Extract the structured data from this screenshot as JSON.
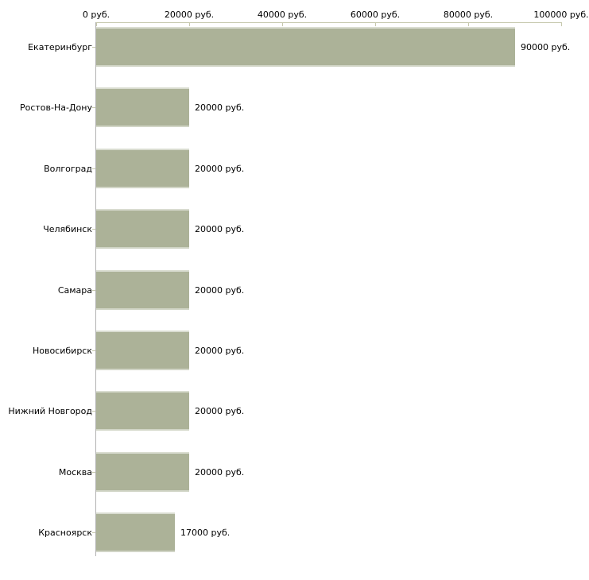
{
  "chart_data": {
    "type": "bar",
    "orientation": "horizontal",
    "title": "",
    "xlabel": "",
    "ylabel": "",
    "categories": [
      "Екатеринбург",
      "Ростов-На-Дону",
      "Волгоград",
      "Челябинск",
      "Самара",
      "Новосибирск",
      "Нижний Новгород",
      "Москва",
      "Красноярск"
    ],
    "values": [
      90000,
      20000,
      20000,
      20000,
      20000,
      20000,
      20000,
      20000,
      17000
    ],
    "value_labels": [
      "90000 руб.",
      "20000 руб.",
      "20000 руб.",
      "20000 руб.",
      "20000 руб.",
      "20000 руб.",
      "20000 руб.",
      "20000 руб.",
      "17000 руб."
    ],
    "x_axis": {
      "position": "top",
      "min": 0,
      "max": 100000,
      "tick_step": 20000,
      "tick_labels": [
        "0 руб.",
        "20000 руб.",
        "40000 руб.",
        "60000 руб.",
        "80000 руб.",
        "100000 руб."
      ]
    },
    "legend": "none",
    "grid": "off",
    "colors": {
      "bar_fill": "#acb298",
      "x_axis_line": "#c6c8ad",
      "x_axis_tick": "#c6c8ad",
      "category_tick": "#c6c8ad",
      "y_axis_line": "#b2b2b2",
      "text": "#000000",
      "background": "#ffffff"
    }
  }
}
